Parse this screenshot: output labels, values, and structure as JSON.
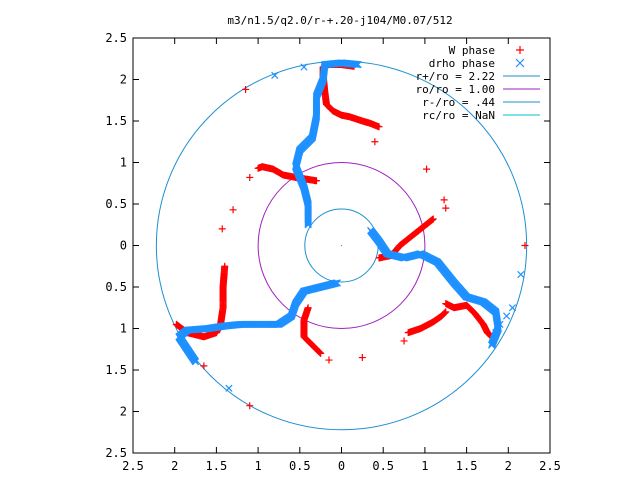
{
  "chart_data": {
    "type": "scatter",
    "title": "m3/n1.5/q2.0/r-+.20-j104/M0.07/512",
    "xlabel": "",
    "ylabel": "",
    "xlim": [
      -2.5,
      2.5
    ],
    "ylim": [
      -2.5,
      2.5
    ],
    "x_ticks": [
      "2.5",
      "2",
      "1.5",
      "1",
      "0.5",
      "0",
      "0.5",
      "1",
      "1.5",
      "2",
      "2.5"
    ],
    "y_ticks": [
      "2.5",
      "2",
      "1.5",
      "1",
      "0.5",
      "0",
      "0.5",
      "1",
      "1.5",
      "2",
      "2.5"
    ],
    "grid": false,
    "legend_position": "top-right",
    "colors": {
      "w_phase": "#ff0000",
      "drho_phase": "#1e90ff",
      "circle_rplus": "#1e8fd0",
      "circle_ro": "#a020c0",
      "circle_rminus": "#1e8fd0",
      "circle_rc": "#00c0d0"
    },
    "circles": [
      {
        "label": "r+/ro = 2.22",
        "radius": 2.22,
        "color": "#1e8fd0"
      },
      {
        "label": "ro/ro = 1.00",
        "radius": 1.0,
        "color": "#a020c0"
      },
      {
        "label": "r-/ro = .44",
        "radius": 0.44,
        "color": "#1e8fd0"
      },
      {
        "label": "rc/ro = NaN",
        "radius": null,
        "color": "#00c0d0"
      }
    ],
    "series": [
      {
        "name": "W phase",
        "marker": "+",
        "arms": [
          [
            [
              -0.22,
              2.05
            ],
            [
              -0.2,
              1.85
            ],
            [
              -0.18,
              1.7
            ],
            [
              -0.1,
              1.62
            ],
            [
              0.0,
              1.57
            ],
            [
              0.1,
              1.55
            ],
            [
              0.25,
              1.5
            ],
            [
              0.35,
              1.47
            ],
            [
              0.45,
              1.43
            ]
          ],
          [
            [
              -0.3,
              0.78
            ],
            [
              -0.55,
              0.82
            ],
            [
              -0.7,
              0.85
            ],
            [
              -0.82,
              0.92
            ],
            [
              -0.95,
              0.95
            ],
            [
              -1.0,
              0.93
            ]
          ],
          [
            [
              0.15,
              2.16
            ],
            [
              0.0,
              2.18
            ],
            [
              -0.15,
              2.18
            ],
            [
              -0.22,
              2.15
            ],
            [
              -0.22,
              2.05
            ]
          ],
          [
            [
              0.45,
              -0.15
            ],
            [
              0.6,
              -0.12
            ],
            [
              0.7,
              0.0
            ],
            [
              0.85,
              0.12
            ],
            [
              0.95,
              0.2
            ],
            [
              1.05,
              0.28
            ],
            [
              1.1,
              0.32
            ]
          ],
          [
            [
              1.25,
              -0.7
            ],
            [
              1.35,
              -0.75
            ],
            [
              1.5,
              -0.72
            ],
            [
              1.6,
              -0.82
            ],
            [
              1.7,
              -0.95
            ],
            [
              1.75,
              -1.05
            ],
            [
              1.8,
              -1.1
            ]
          ],
          [
            [
              0.8,
              -1.05
            ],
            [
              0.95,
              -1.0
            ],
            [
              1.1,
              -0.92
            ],
            [
              1.2,
              -0.85
            ],
            [
              1.25,
              -0.8
            ]
          ],
          [
            [
              -1.4,
              -0.25
            ],
            [
              -1.42,
              -0.5
            ],
            [
              -1.42,
              -0.75
            ],
            [
              -1.45,
              -0.95
            ],
            [
              -1.5,
              -1.05
            ],
            [
              -1.65,
              -1.1
            ],
            [
              -1.85,
              -1.05
            ],
            [
              -1.98,
              -0.95
            ]
          ],
          [
            [
              -0.4,
              -0.75
            ],
            [
              -0.45,
              -0.9
            ],
            [
              -0.45,
              -1.1
            ],
            [
              -0.35,
              -1.2
            ],
            [
              -0.25,
              -1.3
            ]
          ]
        ],
        "isolated": [
          [
            -1.15,
            1.88
          ],
          [
            -1.1,
            0.82
          ],
          [
            -1.3,
            0.43
          ],
          [
            -1.43,
            0.2
          ],
          [
            0.4,
            1.25
          ],
          [
            1.02,
            0.92
          ],
          [
            1.23,
            0.55
          ],
          [
            1.25,
            0.45
          ],
          [
            2.2,
            0.0
          ],
          [
            0.25,
            -1.35
          ],
          [
            0.75,
            -1.15
          ],
          [
            -0.15,
            -1.38
          ],
          [
            -1.1,
            -1.93
          ],
          [
            -1.65,
            -1.45
          ],
          [
            -1.78,
            -1.35
          ]
        ]
      },
      {
        "name": "drho phase",
        "marker": "x",
        "arms": [
          [
            [
              -0.4,
              0.25
            ],
            [
              -0.4,
              0.5
            ],
            [
              -0.45,
              0.7
            ],
            [
              -0.55,
              0.95
            ],
            [
              -0.5,
              1.15
            ],
            [
              -0.35,
              1.3
            ],
            [
              -0.3,
              1.55
            ],
            [
              -0.3,
              1.8
            ],
            [
              -0.22,
              2.0
            ],
            [
              -0.2,
              2.18
            ],
            [
              0.0,
              2.2
            ],
            [
              0.2,
              2.18
            ]
          ],
          [
            [
              0.35,
              0.18
            ],
            [
              0.45,
              0.05
            ],
            [
              0.55,
              -0.1
            ],
            [
              0.75,
              -0.15
            ],
            [
              0.95,
              -0.1
            ],
            [
              1.15,
              -0.2
            ],
            [
              1.35,
              -0.45
            ],
            [
              1.5,
              -0.62
            ],
            [
              1.7,
              -0.68
            ],
            [
              1.85,
              -0.8
            ],
            [
              1.88,
              -1.0
            ],
            [
              1.8,
              -1.2
            ]
          ],
          [
            [
              -0.05,
              -0.45
            ],
            [
              -0.25,
              -0.5
            ],
            [
              -0.45,
              -0.55
            ],
            [
              -0.55,
              -0.7
            ],
            [
              -0.6,
              -0.85
            ],
            [
              -0.75,
              -0.95
            ],
            [
              -0.95,
              -0.95
            ],
            [
              -1.2,
              -0.95
            ],
            [
              -1.4,
              -0.97
            ],
            [
              -1.6,
              -1.0
            ],
            [
              -1.85,
              -1.02
            ],
            [
              -1.95,
              -1.1
            ],
            [
              -1.85,
              -1.25
            ],
            [
              -1.75,
              -1.4
            ]
          ]
        ],
        "isolated": [
          [
            -0.8,
            2.05
          ],
          [
            -0.45,
            2.15
          ],
          [
            -1.35,
            -1.72
          ],
          [
            2.15,
            -0.35
          ],
          [
            2.05,
            -0.75
          ],
          [
            1.98,
            -0.85
          ],
          [
            1.9,
            -0.95
          ],
          [
            1.85,
            -1.05
          ]
        ]
      }
    ]
  }
}
